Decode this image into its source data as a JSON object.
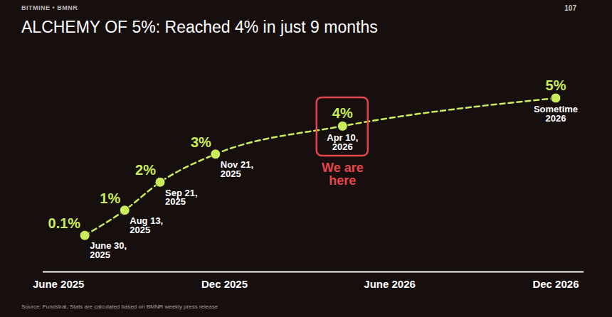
{
  "chart_data": {
    "type": "line",
    "header": "BITMINE • BMNR",
    "page_number": "107",
    "title": "ALCHEMY OF 5%: Reached 4% in just 9 months",
    "source": "Source: Fundstrat, Stats are calculated based on BMNR weekly press release",
    "x": [
      "2025-06-30",
      "2025-08-13",
      "2025-09-21",
      "2025-11-21",
      "2026-04-10",
      "2026-12"
    ],
    "x_labels": [
      "June 30, 2025",
      "Aug 13, 2025",
      "Sep 21, 2025",
      "Nov 21, 2025",
      "Apr 10, 2026",
      "Sometime 2026"
    ],
    "values": [
      0.1,
      1,
      2,
      3,
      4,
      5
    ],
    "value_labels": [
      "0.1%",
      "1%",
      "2%",
      "3%",
      "4%",
      "5%"
    ],
    "data_labels": true,
    "color": "#c8ec5a",
    "line_style": "dashed",
    "marker": "circle",
    "xlim": [
      "2025-05-15",
      "2027-01-01"
    ],
    "xticks": [
      {
        "value": "2025-06",
        "label": "June 2025"
      },
      {
        "value": "2025-12",
        "label": "Dec 2025"
      },
      {
        "value": "2026-06",
        "label": "June 2026"
      },
      {
        "value": "2026-12",
        "label": "Dec 2026"
      }
    ],
    "ylim": [
      -1.2,
      6
    ],
    "tick_labels": "x",
    "annotations": [
      {
        "text": "We are here",
        "x": "2026-04-10",
        "y": 4
      }
    ]
  }
}
